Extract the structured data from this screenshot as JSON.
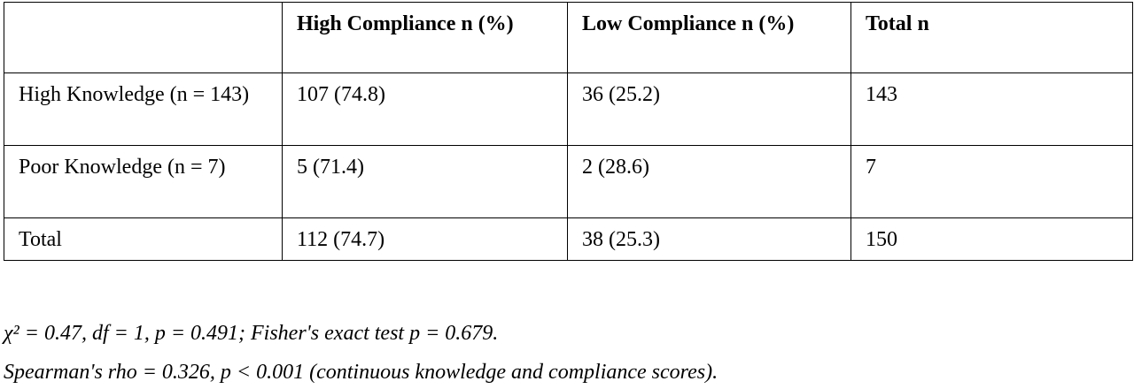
{
  "table": {
    "header": [
      "High Compliance n (%)",
      "Low Compliance n (%)",
      "Total n"
    ],
    "rows": [
      [
        "High Knowledge (n = 143)",
        "107 (74.8)",
        "36 (25.2)",
        "143"
      ],
      [
        "Poor Knowledge (n = 7)",
        "5 (71.4)",
        "2 (28.6)",
        "7"
      ],
      [
        "Total",
        "112 (74.7)",
        "38 (25.3)",
        "150"
      ]
    ]
  },
  "notes": [
    "χ² = 0.47, df = 1, p = 0.491; Fisher's exact test p = 0.679.",
    "Spearman's rho = 0.326, p < 0.001 (continuous knowledge and compliance scores)."
  ]
}
